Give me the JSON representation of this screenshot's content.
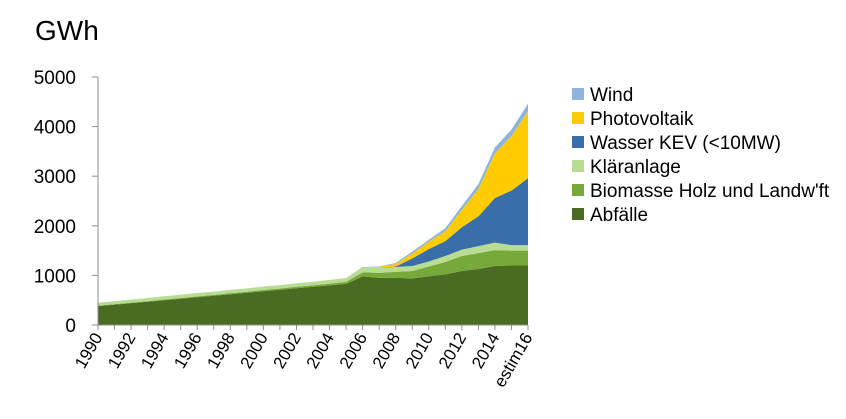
{
  "chart_data": {
    "type": "area",
    "stacked": true,
    "unit_label": "GWh",
    "title": "",
    "xlabel": "",
    "ylabel": "",
    "ylim": [
      0,
      5000
    ],
    "yticks": [
      0,
      1000,
      2000,
      3000,
      4000,
      5000
    ],
    "grid": false,
    "legend_position": "right",
    "categories": [
      "1990",
      "1991",
      "1992",
      "1993",
      "1994",
      "1995",
      "1996",
      "1997",
      "1998",
      "1999",
      "2000",
      "2001",
      "2002",
      "2003",
      "2004",
      "2005",
      "2006",
      "2007",
      "2008",
      "2009",
      "2010",
      "2011",
      "2012",
      "2013",
      "2014",
      "2015",
      "estim16"
    ],
    "tick_labels": [
      "1990",
      "",
      "1992",
      "",
      "1994",
      "",
      "1996",
      "",
      "1998",
      "",
      "2000",
      "",
      "2002",
      "",
      "2004",
      "",
      "2006",
      "",
      "2008",
      "",
      "2010",
      "",
      "2012",
      "",
      "2014",
      "",
      "estim16"
    ],
    "series": [
      {
        "name": "Abfälle",
        "color": "#4a6b22",
        "values": [
          380,
          410,
          440,
          470,
          500,
          530,
          560,
          590,
          620,
          650,
          680,
          710,
          740,
          770,
          800,
          830,
          980,
          950,
          950,
          940,
          980,
          1020,
          1090,
          1130,
          1190,
          1200,
          1200
        ]
      },
      {
        "name": "Biomasse Holz und Landw'ft",
        "color": "#76a83a",
        "values": [
          10,
          10,
          12,
          12,
          15,
          15,
          18,
          18,
          20,
          20,
          25,
          25,
          30,
          30,
          35,
          40,
          80,
          100,
          120,
          150,
          200,
          250,
          300,
          320,
          320,
          300,
          300
        ]
      },
      {
        "name": "Kläranlage",
        "color": "#b7dc92",
        "values": [
          60,
          60,
          62,
          62,
          64,
          64,
          66,
          66,
          68,
          68,
          70,
          70,
          72,
          72,
          74,
          74,
          100,
          100,
          100,
          100,
          100,
          120,
          130,
          140,
          150,
          110,
          110
        ]
      },
      {
        "name": "Wasser KEV (<10MW)",
        "color": "#3a6ea8",
        "values": [
          0,
          0,
          0,
          0,
          0,
          0,
          0,
          0,
          0,
          0,
          0,
          0,
          0,
          0,
          0,
          0,
          0,
          0,
          10,
          150,
          250,
          300,
          450,
          600,
          900,
          1100,
          1350
        ]
      },
      {
        "name": "Photovoltaik",
        "color": "#ffcc00",
        "values": [
          0,
          0,
          0,
          0,
          0,
          0,
          0,
          0,
          0,
          0,
          0,
          0,
          0,
          0,
          0,
          0,
          0,
          20,
          50,
          100,
          150,
          200,
          350,
          550,
          900,
          1100,
          1350
        ]
      },
      {
        "name": "Wind",
        "color": "#8eb4dd",
        "values": [
          0,
          0,
          0,
          0,
          0,
          0,
          0,
          0,
          0,
          0,
          0,
          0,
          0,
          0,
          0,
          0,
          10,
          10,
          20,
          40,
          40,
          60,
          80,
          100,
          120,
          130,
          150
        ]
      }
    ],
    "legend_order": [
      "Wind",
      "Photovoltaik",
      "Wasser KEV (<10MW)",
      "Kläranlage",
      "Biomasse Holz und Landw'ft",
      "Abfälle"
    ]
  }
}
